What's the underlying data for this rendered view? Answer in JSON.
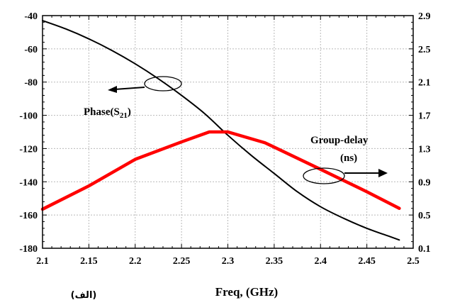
{
  "chart_data": {
    "type": "line",
    "xlabel": "Freq, (GHz)",
    "caption": "(الف)",
    "x_ticks": [
      "2.1",
      "2.15",
      "2.2",
      "2.25",
      "2.3",
      "2.35",
      "2.4",
      "2.45",
      "2.5"
    ],
    "y_left_ticks": [
      "-40",
      "-60",
      "-80",
      "-100",
      "-120",
      "-140",
      "-160",
      "-180"
    ],
    "y_right_ticks": [
      "2.9",
      "2.5",
      "2.1",
      "1.7",
      "1.3",
      "0.9",
      "0.5",
      "0.1"
    ],
    "xlim": [
      2.1,
      2.5
    ],
    "ylim_left": [
      -180,
      -40
    ],
    "ylim_right": [
      0.1,
      2.9
    ],
    "grid": true,
    "series": [
      {
        "name": "Phase(S21)",
        "axis": "left",
        "color": "#000000",
        "x": [
          2.1,
          2.125,
          2.15,
          2.175,
          2.2,
          2.225,
          2.25,
          2.275,
          2.3,
          2.325,
          2.35,
          2.375,
          2.4,
          2.425,
          2.45,
          2.475,
          2.485
        ],
        "y": [
          -43,
          -48,
          -54,
          -61,
          -69,
          -78,
          -88,
          -99,
          -112,
          -124,
          -135,
          -146,
          -155,
          -162,
          -168,
          -173,
          -175
        ]
      },
      {
        "name": "Group-delay (ns)",
        "axis": "right",
        "color": "#ff0000",
        "x": [
          2.1,
          2.15,
          2.2,
          2.25,
          2.28,
          2.3,
          2.34,
          2.4,
          2.45,
          2.485
        ],
        "y": [
          0.57,
          0.85,
          1.17,
          1.38,
          1.5,
          1.5,
          1.37,
          1.05,
          0.78,
          0.58
        ]
      }
    ],
    "annotations": {
      "phase": {
        "main": "Phase(S",
        "sub": "21",
        "close": ")"
      },
      "group_delay": {
        "line1": "Group-delay",
        "line2": "(ns)"
      }
    }
  }
}
